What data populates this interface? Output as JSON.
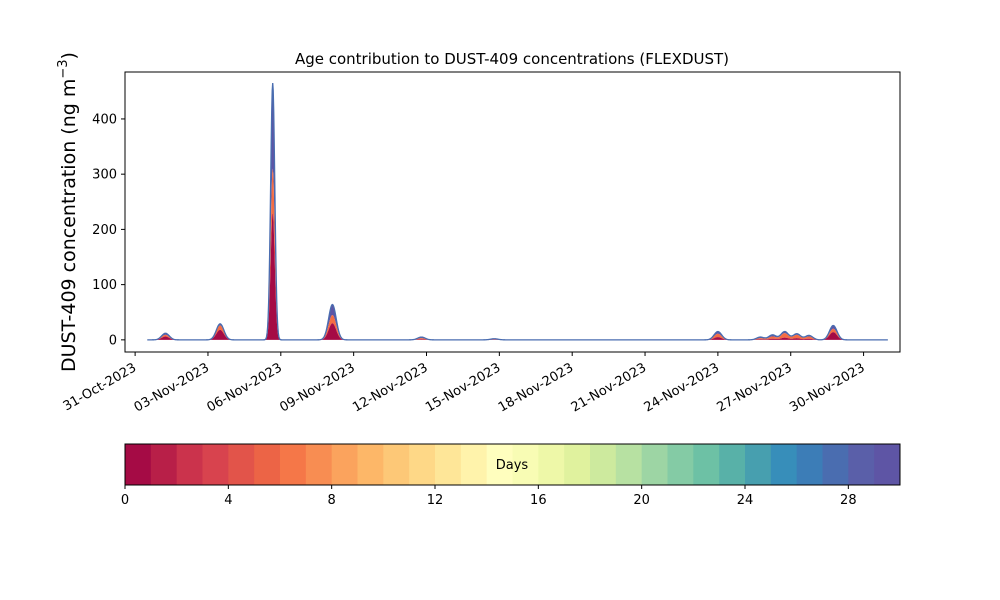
{
  "chart_data": {
    "type": "area",
    "title": "Age contribution to DUST-409 concentrations (FLEXDUST)",
    "ylabel": "DUST-409 concentration (ng m",
    "ylabel_sup": "−3",
    "ylabel_close": ")",
    "xlabel": "",
    "x_range": [
      "2023-10-30T14:00",
      "2023-12-01T12:00"
    ],
    "ylim": [
      -22,
      485
    ],
    "y_ticks": [
      0,
      100,
      200,
      300,
      400
    ],
    "x_ticks": [
      {
        "date": "2023-10-31",
        "label": "31-Oct-2023"
      },
      {
        "date": "2023-11-03",
        "label": "03-Nov-2023"
      },
      {
        "date": "2023-11-06",
        "label": "06-Nov-2023"
      },
      {
        "date": "2023-11-09",
        "label": "09-Nov-2023"
      },
      {
        "date": "2023-11-12",
        "label": "12-Nov-2023"
      },
      {
        "date": "2023-11-15",
        "label": "15-Nov-2023"
      },
      {
        "date": "2023-11-18",
        "label": "18-Nov-2023"
      },
      {
        "date": "2023-11-21",
        "label": "21-Nov-2023"
      },
      {
        "date": "2023-11-24",
        "label": "24-Nov-2023"
      },
      {
        "date": "2023-11-27",
        "label": "27-Nov-2023"
      },
      {
        "date": "2023-11-30",
        "label": "30-Nov-2023"
      }
    ],
    "grid": false,
    "series_colors": {
      "recent_age": "#a50b45",
      "mid_age": "#f46d43",
      "old_age": "#5e55a5"
    },
    "peaks": [
      {
        "date": "2023-11-01T06:00",
        "total": 12,
        "recent": 6,
        "mid": 3
      },
      {
        "date": "2023-11-03T12:00",
        "total": 29,
        "recent": 18,
        "mid": 8
      },
      {
        "date": "2023-11-05T16:00",
        "total": 465,
        "recent": 230,
        "mid": 80
      },
      {
        "date": "2023-11-08T03:00",
        "total": 64,
        "recent": 30,
        "mid": 15
      },
      {
        "date": "2023-11-11T19:00",
        "total": 5,
        "recent": 1,
        "mid": 2
      },
      {
        "date": "2023-11-14T19:00",
        "total": 2,
        "recent": 0.5,
        "mid": 1
      },
      {
        "date": "2023-11-24T00:00",
        "total": 15,
        "recent": 5,
        "mid": 6
      },
      {
        "date": "2023-11-25T18:00",
        "total": 5,
        "recent": 1,
        "mid": 2
      },
      {
        "date": "2023-11-26T06:00",
        "total": 9,
        "recent": 2,
        "mid": 4
      },
      {
        "date": "2023-11-26T18:00",
        "total": 15,
        "recent": 4,
        "mid": 8
      },
      {
        "date": "2023-11-27T06:00",
        "total": 11,
        "recent": 3,
        "mid": 6
      },
      {
        "date": "2023-11-27T18:00",
        "total": 8,
        "recent": 2,
        "mid": 4
      },
      {
        "date": "2023-11-28T18:00",
        "total": 26,
        "recent": 14,
        "mid": 6
      }
    ],
    "series_end": "2023-12-01T00:00",
    "series_start": "2023-10-31T12:00"
  },
  "colorbar": {
    "label": "Days",
    "min": 0,
    "max": 30,
    "ticks": [
      0,
      4,
      8,
      12,
      16,
      20,
      24,
      28
    ],
    "colors": [
      "#a50b45",
      "#b81f48",
      "#cb334c",
      "#d8434e",
      "#e2544a",
      "#ec6446",
      "#f57748",
      "#f88d52",
      "#fba35d",
      "#fdb768",
      "#fdc877",
      "#fed887",
      "#fee698",
      "#fff3ab",
      "#fffebe",
      "#f8fcb4",
      "#eef8a8",
      "#e0f29e",
      "#cdea9e",
      "#b7e1a2",
      "#9dd5a4",
      "#84cba5",
      "#6dc1a5",
      "#58b1a8",
      "#479faf",
      "#378eba",
      "#3c7db7",
      "#4a6db0",
      "#5a5fa9",
      "#5e55a5"
    ]
  }
}
